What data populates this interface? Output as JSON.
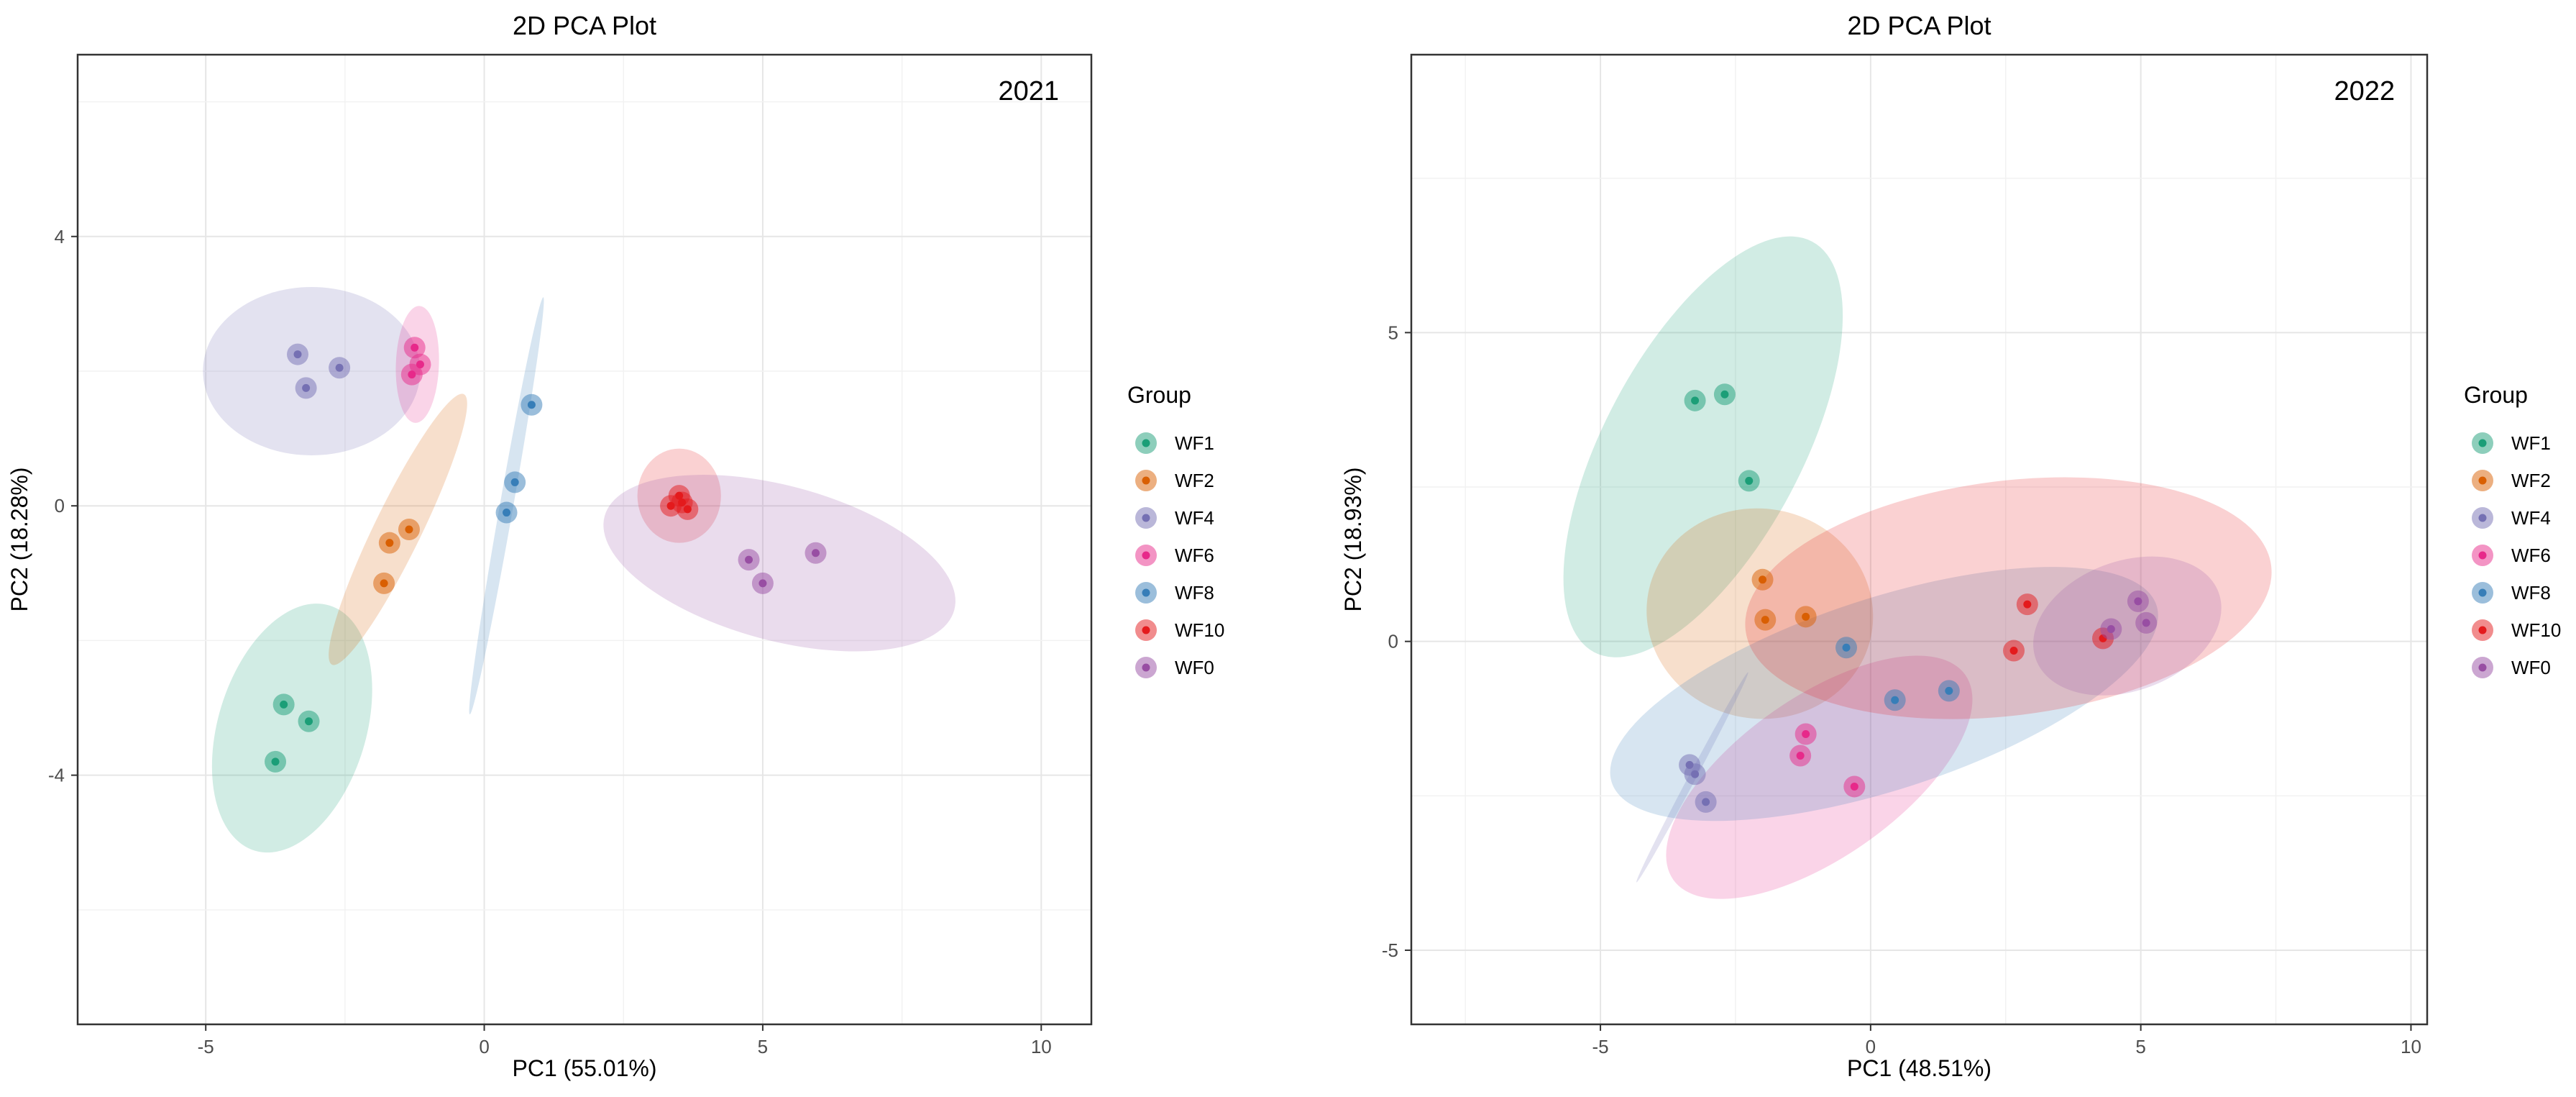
{
  "chart_data": [
    {
      "type": "scatter",
      "title": "2D PCA Plot",
      "annotation": "2021",
      "xlabel": "PC1 (55.01%)",
      "ylabel": "PC2 (18.28%)",
      "xlim": [
        -7.3,
        10.9
      ],
      "ylim": [
        -7.7,
        6.7
      ],
      "xticks": [
        -5,
        0,
        5,
        10
      ],
      "xtick_labels": [
        "-5",
        "0",
        "5",
        "10"
      ],
      "yticks": [
        -4,
        0,
        4
      ],
      "ytick_labels": [
        "-4",
        "0",
        "4"
      ],
      "grid": true,
      "legend_position": "right",
      "legend_title": "Group",
      "series": [
        {
          "name": "WF1",
          "color": "#1b9e77",
          "x": [
            -3.6,
            -3.15,
            -3.75
          ],
          "y": [
            -2.95,
            -3.2,
            -3.8
          ],
          "ellipse": {
            "cx": -3.45,
            "cy": -3.3,
            "rx": 2.3,
            "ry": 1.1,
            "angle": 73
          }
        },
        {
          "name": "WF2",
          "color": "#d95f02",
          "x": [
            -1.7,
            -1.35,
            -1.8
          ],
          "y": [
            -0.55,
            -0.35,
            -1.15
          ],
          "ellipse": {
            "cx": -1.55,
            "cy": -0.35,
            "rx": 2.7,
            "ry": 0.35,
            "angle": 64
          }
        },
        {
          "name": "WF4",
          "color": "#7570b3",
          "x": [
            -3.35,
            -3.2,
            -2.6
          ],
          "y": [
            2.25,
            1.75,
            2.05
          ],
          "ellipse": {
            "cx": -3.1,
            "cy": 2.0,
            "rx": 1.95,
            "ry": 1.25,
            "angle": 0
          }
        },
        {
          "name": "WF6",
          "color": "#e7298a",
          "x": [
            -1.25,
            -1.15,
            -1.3
          ],
          "y": [
            2.35,
            2.1,
            1.95
          ],
          "ellipse": {
            "cx": -1.2,
            "cy": 2.1,
            "rx": 1.05,
            "ry": 0.32,
            "angle": 88
          }
        },
        {
          "name": "WF8",
          "color": "#377eb8",
          "x": [
            0.85,
            0.55,
            0.4
          ],
          "y": [
            1.5,
            0.35,
            -0.1
          ],
          "ellipse": {
            "cx": 0.4,
            "cy": 0.0,
            "rx": 3.8,
            "ry": 0.1,
            "angle": 80
          }
        },
        {
          "name": "WF10",
          "color": "#e41a1c",
          "x": [
            3.5,
            3.35,
            3.65,
            3.55
          ],
          "y": [
            0.15,
            0.0,
            -0.05,
            0.05
          ],
          "ellipse": {
            "cx": 3.5,
            "cy": 0.15,
            "rx": 0.75,
            "ry": 0.7,
            "angle": 0
          }
        },
        {
          "name": "WF0",
          "color": "#984ea3",
          "x": [
            4.75,
            5.0,
            5.95
          ],
          "y": [
            -0.8,
            -1.15,
            -0.7
          ],
          "ellipse": {
            "cx": 5.3,
            "cy": -0.85,
            "rx": 3.25,
            "ry": 1.15,
            "angle": -15
          }
        }
      ]
    },
    {
      "type": "scatter",
      "title": "2D PCA Plot",
      "annotation": "2022",
      "xlabel": "PC1 (48.51%)",
      "ylabel": "PC2 (18.93%)",
      "xlim": [
        -8.5,
        10.3
      ],
      "ylim": [
        -6.2,
        9.5
      ],
      "xticks": [
        -5,
        0,
        5,
        10
      ],
      "xtick_labels": [
        "-5",
        "0",
        "5",
        "10"
      ],
      "yticks": [
        -5,
        0,
        5
      ],
      "ytick_labels": [
        "-5",
        "0",
        "5"
      ],
      "grid": true,
      "legend_position": "right",
      "legend_title": "Group",
      "series": [
        {
          "name": "WF1",
          "color": "#1b9e77",
          "x": [
            -3.25,
            -2.7,
            -2.25
          ],
          "y": [
            3.9,
            4.0,
            2.6
          ],
          "ellipse": {
            "cx": -3.1,
            "cy": 3.15,
            "rx": 4.3,
            "ry": 1.6,
            "angle": 62
          }
        },
        {
          "name": "WF2",
          "color": "#d95f02",
          "x": [
            -2.0,
            -1.95,
            -1.2
          ],
          "y": [
            1.0,
            0.35,
            0.4
          ],
          "ellipse": {
            "cx": -2.05,
            "cy": 0.45,
            "rx": 2.1,
            "ry": 1.7,
            "angle": -10
          }
        },
        {
          "name": "WF4",
          "color": "#7570b3",
          "x": [
            -3.35,
            -3.25,
            -3.05
          ],
          "y": [
            -2.0,
            -2.15,
            -2.6
          ],
          "ellipse": {
            "cx": -3.3,
            "cy": -2.2,
            "rx": 2.2,
            "ry": 0.06,
            "angle": 62
          }
        },
        {
          "name": "WF6",
          "color": "#e7298a",
          "x": [
            -1.2,
            -1.3,
            -0.3
          ],
          "y": [
            -1.5,
            -1.85,
            -2.35
          ],
          "ellipse": {
            "cx": -0.95,
            "cy": -2.2,
            "rx": 3.3,
            "ry": 1.3,
            "angle": 35
          }
        },
        {
          "name": "WF8",
          "color": "#377eb8",
          "x": [
            -0.45,
            0.45,
            1.45
          ],
          "y": [
            -0.1,
            -0.95,
            -0.8
          ],
          "ellipse": {
            "cx": 0.25,
            "cy": -0.85,
            "rx": 5.3,
            "ry": 1.55,
            "angle": 18
          }
        },
        {
          "name": "WF10",
          "color": "#e41a1c",
          "x": [
            2.9,
            2.65,
            4.3
          ],
          "y": [
            0.6,
            -0.15,
            0.05
          ],
          "ellipse": {
            "cx": 2.55,
            "cy": 0.7,
            "rx": 4.9,
            "ry": 1.9,
            "angle": 7
          }
        },
        {
          "name": "WF0",
          "color": "#984ea3",
          "x": [
            4.95,
            4.45,
            5.1
          ],
          "y": [
            0.65,
            0.2,
            0.3
          ],
          "ellipse": {
            "cx": 4.75,
            "cy": 0.25,
            "rx": 1.8,
            "ry": 1.05,
            "angle": 20
          }
        }
      ]
    }
  ]
}
